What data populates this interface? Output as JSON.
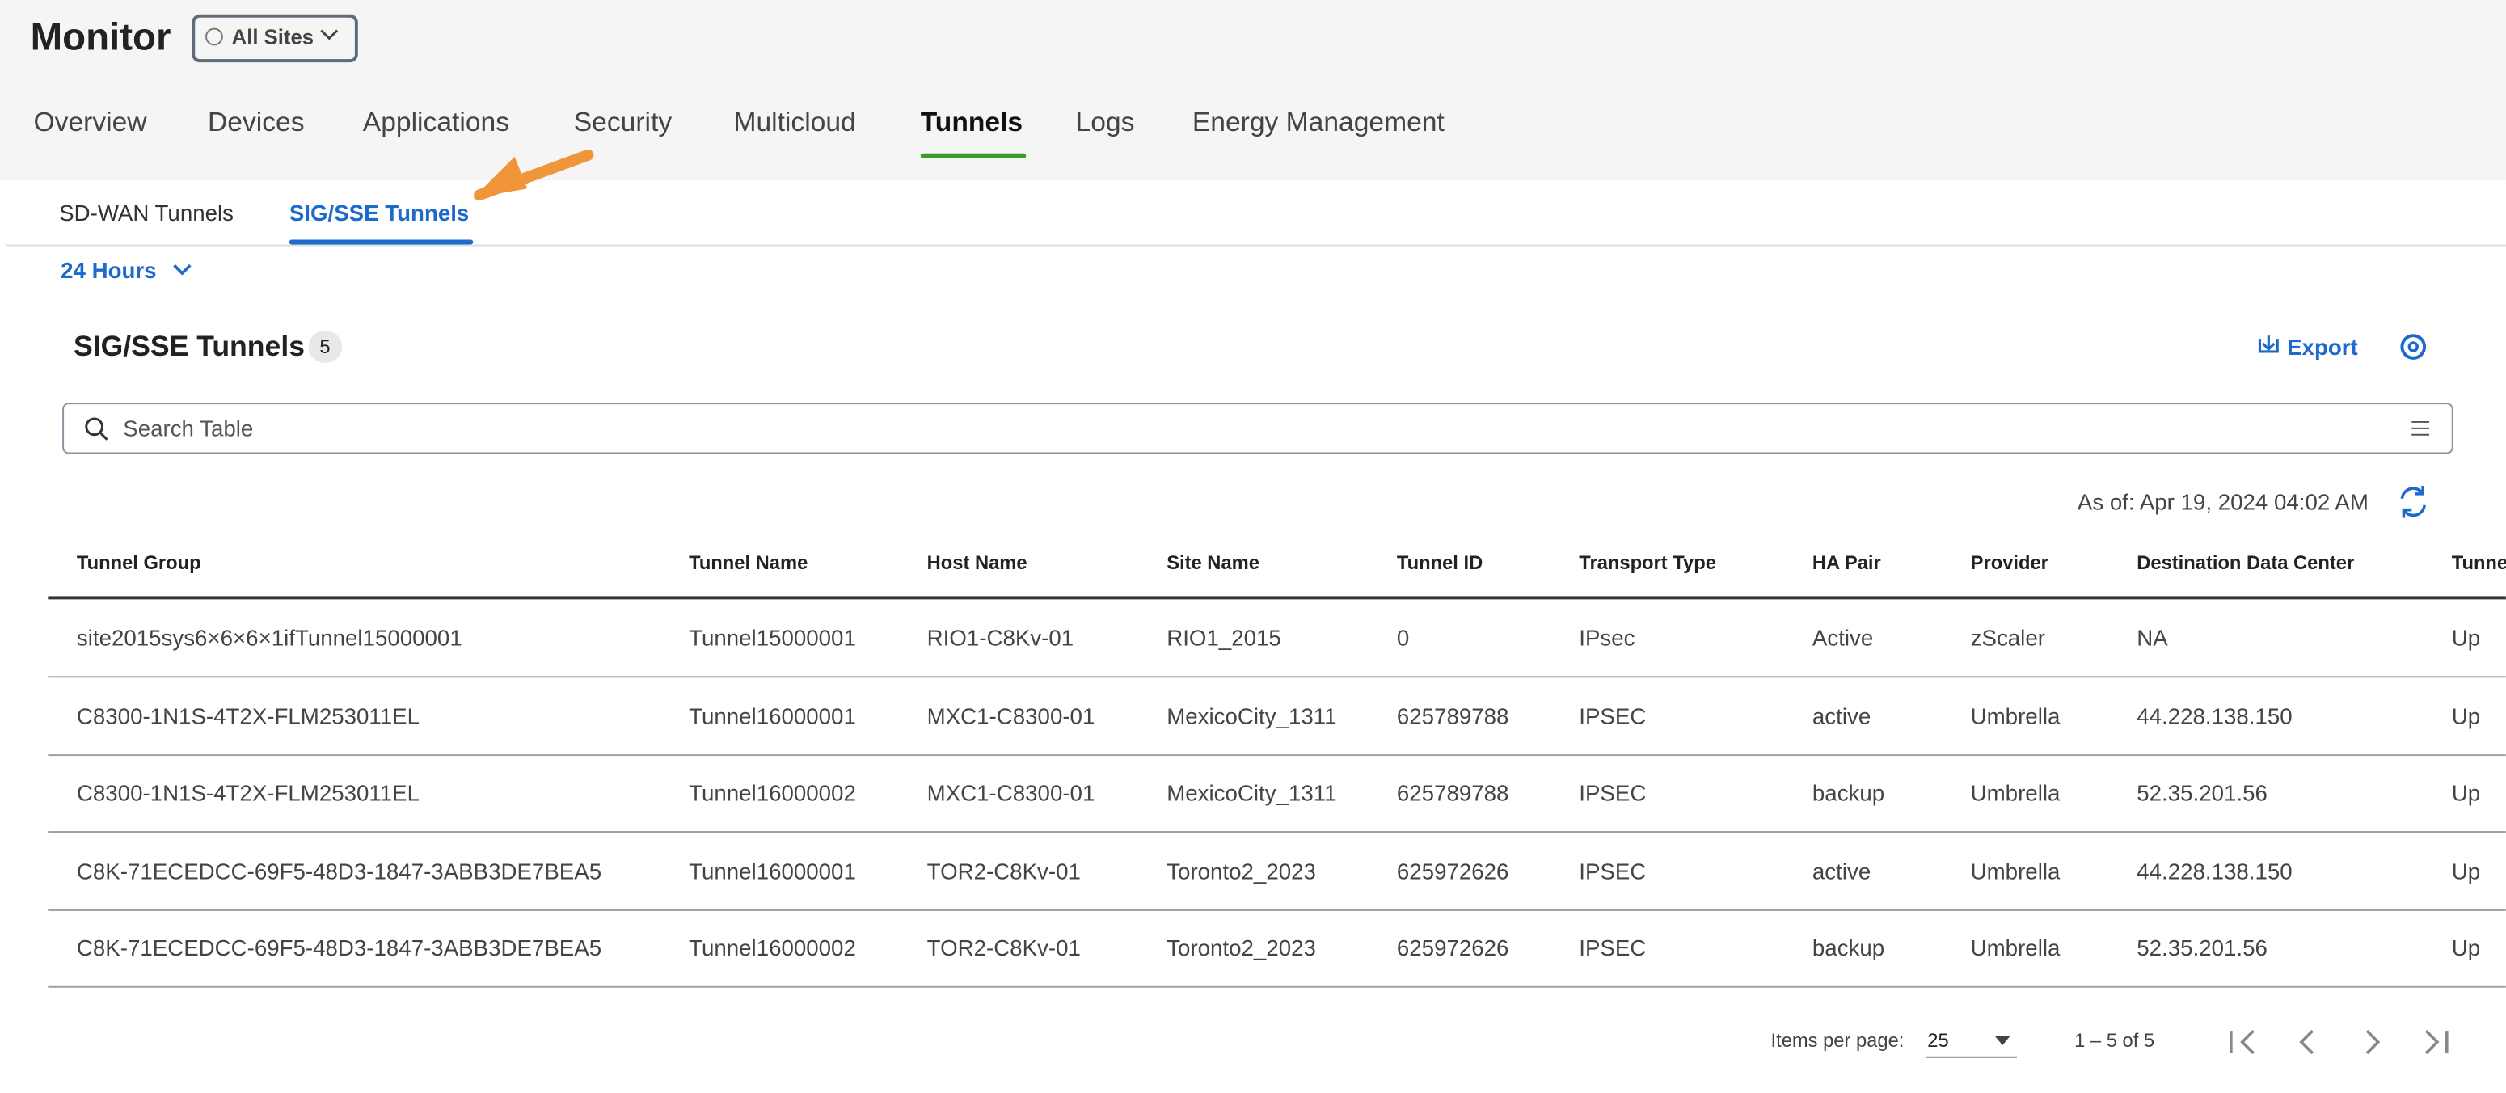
{
  "header": {
    "title": "Monitor",
    "site_selector": "All Sites"
  },
  "tabs": {
    "items": [
      "Overview",
      "Devices",
      "Applications",
      "Security",
      "Multicloud",
      "Tunnels",
      "Logs",
      "Energy Management"
    ],
    "active": "Tunnels"
  },
  "subtabs": {
    "items": [
      "SD-WAN Tunnels",
      "SIG/SSE Tunnels"
    ],
    "active": "SIG/SSE Tunnels"
  },
  "time_filter": "24 Hours",
  "table": {
    "title": "SIG/SSE Tunnels",
    "count": "5",
    "export": "Export",
    "search_placeholder": "Search Table",
    "as_of": "As of: Apr 19, 2024 04:02 AM",
    "columns": [
      "Tunnel Group",
      "Tunnel Name",
      "Host Name",
      "Site Name",
      "Tunnel ID",
      "Transport Type",
      "HA Pair",
      "Provider",
      "Destination Data Center",
      "Tunne"
    ],
    "rows": [
      [
        "site2015sys6×6×6×1ifTunnel15000001",
        "Tunnel15000001",
        "RIO1-C8Kv-01",
        "RIO1_2015",
        "0",
        "IPsec",
        "Active",
        "zScaler",
        "NA",
        "Up"
      ],
      [
        "C8300-1N1S-4T2X-FLM253011EL",
        "Tunnel16000001",
        "MXC1-C8300-01",
        "MexicoCity_1311",
        "625789788",
        "IPSEC",
        "active",
        "Umbrella",
        "44.228.138.150",
        "Up"
      ],
      [
        "C8300-1N1S-4T2X-FLM253011EL",
        "Tunnel16000002",
        "MXC1-C8300-01",
        "MexicoCity_1311",
        "625789788",
        "IPSEC",
        "backup",
        "Umbrella",
        "52.35.201.56",
        "Up"
      ],
      [
        "C8K-71ECEDCC-69F5-48D3-1847-3ABB3DE7BEA5",
        "Tunnel16000001",
        "TOR2-C8Kv-01",
        "Toronto2_2023",
        "625972626",
        "IPSEC",
        "active",
        "Umbrella",
        "44.228.138.150",
        "Up"
      ],
      [
        "C8K-71ECEDCC-69F5-48D3-1847-3ABB3DE7BEA5",
        "Tunnel16000002",
        "TOR2-C8Kv-01",
        "Toronto2_2023",
        "625972626",
        "IPSEC",
        "backup",
        "Umbrella",
        "52.35.201.56",
        "Up"
      ]
    ],
    "pagination": {
      "items_per_page_label": "Items per page:",
      "items_per_page": "25",
      "range": "1 – 5 of 5"
    }
  }
}
